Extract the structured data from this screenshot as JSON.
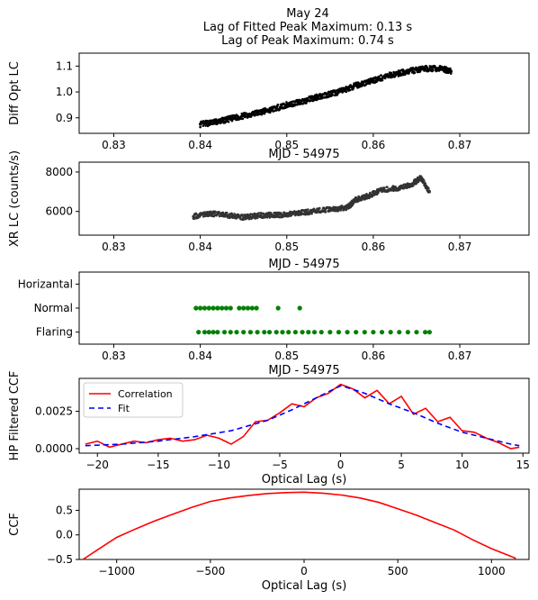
{
  "figure": {
    "title_lines": [
      "May 24",
      "Lag of Fitted Peak Maximum: 0.13 s",
      "Lag of Peak Maximum: 0.74 s"
    ]
  },
  "chart_data": [
    {
      "id": "p1",
      "type": "scatter",
      "ylabel": "Diff Opt LC",
      "xlabel": "",
      "xlim": [
        0.826,
        0.878
      ],
      "ylim": [
        0.84,
        1.15
      ],
      "xticks": [
        "0.83",
        "0.84",
        "0.85",
        "0.86",
        "0.87"
      ],
      "xtick_values": [
        0.83,
        0.84,
        0.85,
        0.86,
        0.87
      ],
      "yticks": [
        "0.9",
        "1.0",
        "1.1"
      ],
      "ytick_values": [
        0.9,
        1.0,
        1.1
      ],
      "color": "#000000",
      "series": [
        {
          "x": [
            0.84,
            0.842,
            0.844,
            0.846,
            0.848,
            0.85,
            0.852,
            0.854,
            0.856,
            0.858,
            0.86,
            0.862,
            0.864,
            0.866,
            0.868,
            0.869
          ],
          "y": [
            0.875,
            0.885,
            0.9,
            0.915,
            0.93,
            0.95,
            0.965,
            0.985,
            1.0,
            1.025,
            1.045,
            1.065,
            1.08,
            1.09,
            1.09,
            1.08
          ]
        }
      ]
    },
    {
      "id": "p2",
      "type": "scatter",
      "title": "MJD - 54975",
      "ylabel": "XR LC (counts/s)",
      "xlabel": "",
      "xlim": [
        0.826,
        0.878
      ],
      "ylim": [
        4800,
        8500
      ],
      "xticks": [
        "0.83",
        "0.84",
        "0.85",
        "0.86",
        "0.87"
      ],
      "xtick_values": [
        0.83,
        0.84,
        0.85,
        0.86,
        0.87
      ],
      "yticks": [
        "6000",
        "8000"
      ],
      "ytick_values": [
        6000,
        8000
      ],
      "color": "#333333",
      "series": [
        {
          "x": [
            0.8392,
            0.841,
            0.843,
            0.845,
            0.847,
            0.849,
            0.851,
            0.853,
            0.855,
            0.857,
            0.858,
            0.8595,
            0.861,
            0.863,
            0.8645,
            0.8655,
            0.8665
          ],
          "y": [
            5750,
            5900,
            5820,
            5700,
            5800,
            5820,
            5900,
            6000,
            6100,
            6200,
            6600,
            6800,
            7100,
            7200,
            7400,
            7700,
            7000
          ]
        }
      ]
    },
    {
      "id": "p3",
      "type": "scatter",
      "title": "MJD - 54975",
      "ylabel": "",
      "xlabel": "",
      "xlim": [
        0.826,
        0.878
      ],
      "categories": [
        "Flaring",
        "Normal",
        "Horizantal"
      ],
      "xticks": [
        "0.83",
        "0.84",
        "0.85",
        "0.86",
        "0.87"
      ],
      "xtick_values": [
        0.83,
        0.84,
        0.85,
        0.86,
        0.87
      ],
      "color": "#008000",
      "series": [
        {
          "name": "",
          "x": [
            0.8395,
            0.84,
            0.8405,
            0.841,
            0.8415,
            0.842,
            0.8425,
            0.843,
            0.8435,
            0.8445,
            0.845,
            0.8455,
            0.846,
            0.8465,
            0.849,
            0.8515
          ],
          "y": [
            "Normal",
            "Normal",
            "Normal",
            "Normal",
            "Normal",
            "Normal",
            "Normal",
            "Normal",
            "Normal",
            "Normal",
            "Normal",
            "Normal",
            "Normal",
            "Normal",
            "Normal",
            "Normal"
          ]
        },
        {
          "name": "",
          "x": [
            0.8398,
            0.8405,
            0.841,
            0.8415,
            0.842,
            0.8428,
            0.8435,
            0.8442,
            0.845,
            0.8458,
            0.8466,
            0.8474,
            0.848,
            0.8488,
            0.8495,
            0.8502,
            0.851,
            0.8518,
            0.8525,
            0.8532,
            0.854,
            0.855,
            0.856,
            0.857,
            0.858,
            0.859,
            0.86,
            0.861,
            0.862,
            0.863,
            0.864,
            0.865,
            0.866,
            0.8665
          ],
          "y": [
            "Flaring",
            "Flaring",
            "Flaring",
            "Flaring",
            "Flaring",
            "Flaring",
            "Flaring",
            "Flaring",
            "Flaring",
            "Flaring",
            "Flaring",
            "Flaring",
            "Flaring",
            "Flaring",
            "Flaring",
            "Flaring",
            "Flaring",
            "Flaring",
            "Flaring",
            "Flaring",
            "Flaring",
            "Flaring",
            "Flaring",
            "Flaring",
            "Flaring",
            "Flaring",
            "Flaring",
            "Flaring",
            "Flaring",
            "Flaring",
            "Flaring",
            "Flaring",
            "Flaring",
            "Flaring"
          ]
        }
      ]
    },
    {
      "id": "p4",
      "type": "line",
      "title": "MJD - 54975",
      "ylabel": "HP Filtered CCF",
      "xlabel": "Optical Lag (s)",
      "xlim": [
        -21.5,
        15.5
      ],
      "ylim": [
        -0.0003,
        0.0047
      ],
      "xticks": [
        "−20",
        "−15",
        "−10",
        "−5",
        "0",
        "5",
        "10",
        "15"
      ],
      "xtick_values": [
        -20,
        -15,
        -10,
        -5,
        0,
        5,
        10,
        15
      ],
      "yticks": [
        "0.0000",
        "0.0025"
      ],
      "ytick_values": [
        0,
        0.0025
      ],
      "legend": {
        "placement": "top-left",
        "entries": [
          "Correlation",
          "Fit"
        ]
      },
      "series": [
        {
          "name": "Correlation",
          "color": "#ff0000",
          "dash": "",
          "x": [
            -21,
            -20,
            -19,
            -18,
            -17,
            -16,
            -15,
            -14,
            -13,
            -12,
            -11,
            -10,
            -9,
            -8,
            -7,
            -6,
            -5,
            -4,
            -3,
            -2,
            -1,
            0,
            1,
            2,
            3,
            4,
            5,
            6,
            7,
            8,
            9,
            10,
            11,
            12,
            13,
            14,
            14.7
          ],
          "y": [
            0.0003,
            0.0005,
            0.0001,
            0.0003,
            0.0005,
            0.0004,
            0.0006,
            0.0007,
            0.0005,
            0.0006,
            0.0009,
            0.0007,
            0.0003,
            0.0008,
            0.0018,
            0.0019,
            0.0024,
            0.003,
            0.0028,
            0.0034,
            0.0037,
            0.0043,
            0.004,
            0.0034,
            0.0039,
            0.003,
            0.0035,
            0.0023,
            0.0027,
            0.0018,
            0.0021,
            0.0012,
            0.0011,
            0.0007,
            0.0004,
            0.0,
            0.0001
          ]
        },
        {
          "name": "Fit",
          "color": "#0000ff",
          "dash": "6,4",
          "x": [
            -21,
            -18,
            -15,
            -12,
            -9,
            -6,
            -4,
            -2,
            0,
            0.13,
            2,
            4,
            6,
            8,
            10,
            12,
            14,
            14.7
          ],
          "y": [
            0.0002,
            0.0003,
            0.0005,
            0.0008,
            0.0012,
            0.0019,
            0.0026,
            0.0034,
            0.0042,
            0.0042,
            0.0037,
            0.003,
            0.0024,
            0.0017,
            0.0011,
            0.0007,
            0.0003,
            0.0002
          ]
        }
      ]
    },
    {
      "id": "p5",
      "type": "line",
      "ylabel": "CCF",
      "xlabel": "Optical Lag (s)",
      "xlim": [
        -1200,
        1200
      ],
      "ylim": [
        -0.5,
        0.93
      ],
      "xticks": [
        "−1000",
        "−500",
        "0",
        "500",
        "1000"
      ],
      "xtick_values": [
        -1000,
        -500,
        0,
        500,
        1000
      ],
      "yticks": [
        "−0.5",
        "0.0",
        "0.5"
      ],
      "ytick_values": [
        -0.5,
        0,
        0.5
      ],
      "series": [
        {
          "name": "",
          "color": "#ff0000",
          "dash": "",
          "x": [
            -1180,
            -1100,
            -1000,
            -900,
            -800,
            -700,
            -600,
            -500,
            -400,
            -300,
            -200,
            -100,
            0,
            100,
            200,
            300,
            400,
            500,
            600,
            700,
            800,
            900,
            1000,
            1100,
            1130
          ],
          "y": [
            -0.5,
            -0.3,
            -0.05,
            0.12,
            0.28,
            0.42,
            0.56,
            0.68,
            0.75,
            0.8,
            0.84,
            0.86,
            0.87,
            0.85,
            0.81,
            0.75,
            0.66,
            0.53,
            0.4,
            0.25,
            0.1,
            -0.1,
            -0.28,
            -0.43,
            -0.48
          ]
        }
      ]
    }
  ]
}
